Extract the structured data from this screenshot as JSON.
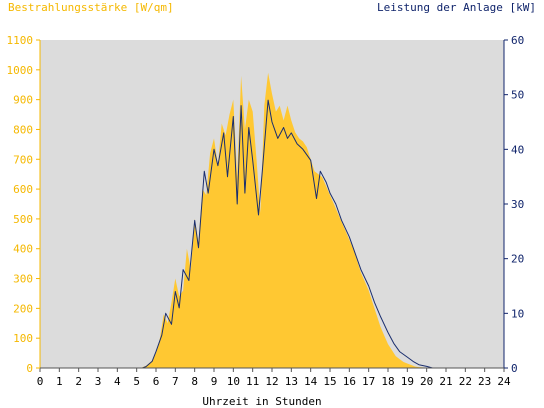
{
  "chart_data": {
    "type": "area",
    "title_left": "Bestrahlungsstärke [W/qm]",
    "title_right": "Leistung der Anlage [kW]",
    "xlabel": "Uhrzeit in Stunden",
    "xlim": [
      0,
      24
    ],
    "ylim_left": [
      0,
      1100
    ],
    "ylim_right": [
      0,
      60
    ],
    "x_ticks": [
      "0",
      "1",
      "2",
      "3",
      "4",
      "5",
      "6",
      "7",
      "8",
      "9",
      "10",
      "11",
      "12",
      "13",
      "14",
      "15",
      "16",
      "17",
      "18",
      "19",
      "20",
      "21",
      "22",
      "23",
      "24"
    ],
    "y_ticks_left": [
      "0",
      "100",
      "200",
      "300",
      "400",
      "500",
      "600",
      "700",
      "800",
      "900",
      "1000",
      "1100"
    ],
    "y_ticks_right": [
      "0",
      "10",
      "20",
      "30",
      "40",
      "50",
      "60"
    ],
    "grid": false,
    "colors": {
      "plot_background": "#dcdcdc",
      "irradiance_fill": "#ffc832",
      "power_line": "#1a2e6e",
      "left_axis": "#f5b800",
      "right_axis": "#10246b"
    },
    "series": [
      {
        "name": "Bestrahlungsstärke",
        "axis": "left",
        "style": "area",
        "x": [
          0,
          5.2,
          5.5,
          5.8,
          6.0,
          6.2,
          6.4,
          6.6,
          6.8,
          7.0,
          7.2,
          7.4,
          7.6,
          7.8,
          8.0,
          8.2,
          8.4,
          8.6,
          8.8,
          9.0,
          9.2,
          9.4,
          9.6,
          9.8,
          10.0,
          10.2,
          10.4,
          10.6,
          10.8,
          11.0,
          11.2,
          11.4,
          11.6,
          11.8,
          12.0,
          12.2,
          12.4,
          12.6,
          12.8,
          13.0,
          13.2,
          13.4,
          13.6,
          13.8,
          14.0,
          14.2,
          14.4,
          14.6,
          14.8,
          15.0,
          15.2,
          15.4,
          15.6,
          15.8,
          16.0,
          16.2,
          16.4,
          16.6,
          16.8,
          17.0,
          17.2,
          17.4,
          17.6,
          17.8,
          18.0,
          18.2,
          18.4,
          18.6,
          18.8,
          19.0,
          19.2,
          19.4,
          19.6,
          19.8,
          20.0,
          20.2,
          20.4,
          24
        ],
        "values": [
          0,
          0,
          8,
          25,
          50,
          100,
          180,
          150,
          220,
          300,
          240,
          260,
          400,
          330,
          500,
          420,
          600,
          580,
          720,
          770,
          680,
          820,
          780,
          850,
          900,
          640,
          980,
          800,
          900,
          860,
          700,
          520,
          880,
          990,
          920,
          860,
          880,
          830,
          880,
          830,
          790,
          770,
          760,
          740,
          700,
          660,
          650,
          640,
          610,
          580,
          550,
          520,
          490,
          460,
          430,
          400,
          360,
          320,
          290,
          260,
          220,
          180,
          140,
          110,
          80,
          60,
          40,
          30,
          20,
          15,
          10,
          5,
          3,
          2,
          1,
          0,
          0,
          0
        ]
      },
      {
        "name": "Leistung der Anlage",
        "axis": "right",
        "style": "line",
        "x": [
          0,
          5.3,
          5.5,
          5.8,
          6.0,
          6.3,
          6.5,
          6.8,
          7.0,
          7.2,
          7.4,
          7.7,
          8.0,
          8.2,
          8.5,
          8.7,
          9.0,
          9.2,
          9.5,
          9.7,
          10.0,
          10.2,
          10.4,
          10.6,
          10.8,
          11.0,
          11.3,
          11.5,
          11.8,
          12.0,
          12.3,
          12.6,
          12.8,
          13.0,
          13.3,
          13.6,
          13.8,
          14.0,
          14.3,
          14.5,
          14.8,
          15.0,
          15.3,
          15.6,
          16.0,
          16.3,
          16.6,
          17.0,
          17.3,
          17.6,
          18.0,
          18.3,
          18.6,
          19.0,
          19.3,
          19.6,
          20.0,
          20.3,
          24
        ],
        "values": [
          0,
          0,
          0.3,
          1.2,
          3.0,
          6.0,
          10.0,
          8.0,
          14.0,
          11.0,
          18.0,
          16.0,
          27.0,
          22.0,
          36.0,
          32.0,
          40.0,
          37.0,
          43.0,
          35.0,
          46.0,
          30.0,
          48.0,
          32.0,
          44.0,
          38.0,
          28.0,
          36.0,
          49.0,
          45.0,
          42.0,
          44.0,
          42.0,
          43.0,
          41.0,
          40.0,
          39.0,
          38.0,
          31.0,
          36.0,
          34.0,
          32.0,
          30.0,
          27.0,
          24.0,
          21.0,
          18.0,
          15.0,
          12.0,
          9.5,
          6.5,
          4.5,
          3.0,
          2.0,
          1.2,
          0.6,
          0.3,
          0,
          0
        ]
      }
    ]
  }
}
